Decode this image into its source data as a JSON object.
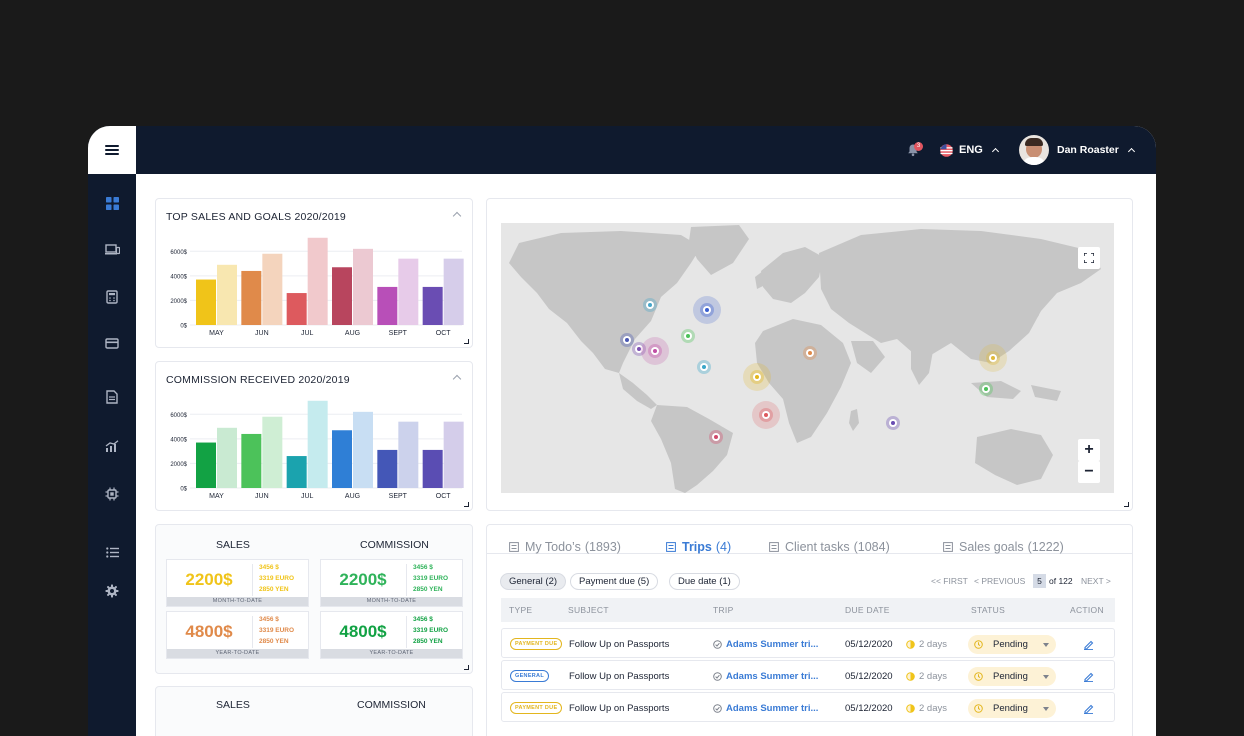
{
  "topbar": {
    "notification_count": "3",
    "language": "ENG",
    "user_name": "Dan Roaster"
  },
  "sidebar": {
    "items": [
      "dashboard-icon",
      "devices-icon",
      "calculator-icon",
      "card-icon",
      "document-icon",
      "analytics-icon",
      "cpu-icon",
      "list-icon",
      "gear-icon"
    ]
  },
  "charts": [
    {
      "title": "TOP SALES AND GOALS 2020/2019",
      "chart_data": {
        "type": "bar",
        "categories": [
          "MAY",
          "JUN",
          "JUL",
          "AUG",
          "SEPT",
          "OCT"
        ],
        "yticks": [
          "6000$",
          "4000$",
          "2000$",
          "0$"
        ],
        "ylim": [
          0,
          7000
        ],
        "series": [
          {
            "values": [
              3700,
              4400,
              2600,
              4700,
              3100,
              3100
            ],
            "colors": [
              "#f0c419",
              "#e08a4a",
              "#dd5a5e",
              "#b8455e",
              "#b84fb8",
              "#6a4db3"
            ]
          },
          {
            "values": [
              4900,
              5800,
              7100,
              6200,
              5400,
              5400
            ],
            "colors": [
              "#f8e7b0",
              "#f4d4bd",
              "#f1c9cc",
              "#ecc9d2",
              "#e7cbe9",
              "#d6cdea"
            ]
          }
        ]
      }
    },
    {
      "title": "COMMISSION RECEIVED 2020/2019",
      "chart_data": {
        "type": "bar",
        "categories": [
          "MAY",
          "JUN",
          "JUL",
          "AUG",
          "SEPT",
          "OCT"
        ],
        "yticks": [
          "6000$",
          "4000$",
          "2000$",
          "0$"
        ],
        "ylim": [
          0,
          7000
        ],
        "series": [
          {
            "values": [
              3700,
              4400,
              2600,
              4700,
              3100,
              3100
            ],
            "colors": [
              "#12a244",
              "#4cc25a",
              "#1ba3ae",
              "#2f7fd6",
              "#4457b7",
              "#5a4db3"
            ]
          },
          {
            "values": [
              4900,
              5800,
              7100,
              6200,
              5400,
              5400
            ],
            "colors": [
              "#c9ead2",
              "#cfeed4",
              "#c5ebee",
              "#c8def3",
              "#ccd2ec",
              "#d4cdea"
            ]
          }
        ]
      }
    }
  ],
  "kpi": {
    "sales_label": "SALES",
    "commission_label": "COMMISSION",
    "month_label": "MONTH-TO-DATE",
    "year_label": "YEAR-TO-DATE",
    "sales_month": {
      "main": "2200$",
      "usd": "3456 $",
      "euro": "3319 EURO",
      "yen": "2850 YEN",
      "color": "#f0c419"
    },
    "sales_year": {
      "main": "4800$",
      "usd": "3456 $",
      "euro": "3319 EURO",
      "yen": "2850 YEN",
      "color": "#e08a4a"
    },
    "comm_month": {
      "main": "2200$",
      "usd": "3456 $",
      "euro": "3319 EURO",
      "yen": "2850 YEN",
      "color": "#2fb35a"
    },
    "comm_year": {
      "main": "4800$",
      "usd": "3456 $",
      "euro": "3319 EURO",
      "yen": "2850 YEN",
      "color": "#12a244"
    },
    "second_sales_label": "SALES",
    "second_commission_label": "COMMISSION"
  },
  "map": {
    "zoom_in": "+",
    "zoom_out": "−",
    "markers": [
      {
        "color": "#47a6c9",
        "size": "s"
      },
      {
        "color": "#3a5fcf",
        "size": "l"
      },
      {
        "color": "#4a58b3",
        "size": "s"
      },
      {
        "color": "#7f52b3",
        "size": "s"
      },
      {
        "color": "#c04fa5",
        "size": "l"
      },
      {
        "color": "#4cc25a",
        "size": "s"
      },
      {
        "color": "#3aa7c9",
        "size": "s"
      },
      {
        "color": "#e08a4a",
        "size": "s"
      },
      {
        "color": "#e3b61e",
        "size": "l"
      },
      {
        "color": "#dd5a5e",
        "size": "l"
      },
      {
        "color": "#d14b6b",
        "size": "s"
      },
      {
        "color": "#e0b93a",
        "size": "l"
      },
      {
        "color": "#4cc25a",
        "size": "s"
      },
      {
        "color": "#6a4db3",
        "size": "s"
      }
    ]
  },
  "tabs": [
    {
      "label": "My Todo’s",
      "count": "(1893)"
    },
    {
      "label": "Trips",
      "count": "(4)"
    },
    {
      "label": "Client tasks",
      "count": "(1084)"
    },
    {
      "label": "Sales goals",
      "count": "(1222)"
    }
  ],
  "filters": [
    "General (2)",
    "Payment due (5)",
    "Due date (1)"
  ],
  "pager": {
    "first": "<< FIRST",
    "previous": "< PREVIOUS",
    "page": "5",
    "of": "of 122",
    "next": "NEXT >"
  },
  "table": {
    "headers": [
      "TYPE",
      "SUBJECT",
      "TRIP",
      "DUE DATE",
      "STATUS",
      "ACTION"
    ],
    "rows": [
      {
        "type": "PAYMENT DUE",
        "type_color": "#e3b61e",
        "subject": "Follow Up on Passports",
        "trip": "Adams Summer tri...",
        "due": "05/12/2020",
        "days": "2 days",
        "status": "Pending"
      },
      {
        "type": "GENERAL",
        "type_color": "#3a7bd5",
        "subject": "Follow Up on Passports",
        "trip": "Adams Summer tri...",
        "due": "05/12/2020",
        "days": "2 days",
        "status": "Pending"
      },
      {
        "type": "PAYMENT DUE",
        "type_color": "#e3b61e",
        "subject": "Follow Up on Passports",
        "trip": "Adams Summer tri...",
        "due": "05/12/2020",
        "days": "2 days",
        "status": "Pending"
      }
    ]
  }
}
